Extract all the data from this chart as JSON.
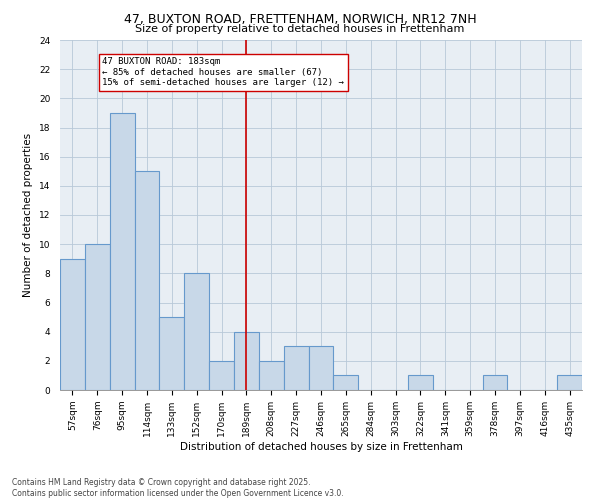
{
  "title_line1": "47, BUXTON ROAD, FRETTENHAM, NORWICH, NR12 7NH",
  "title_line2": "Size of property relative to detached houses in Frettenham",
  "xlabel": "Distribution of detached houses by size in Frettenham",
  "ylabel": "Number of detached properties",
  "categories": [
    "57sqm",
    "76sqm",
    "95sqm",
    "114sqm",
    "133sqm",
    "152sqm",
    "170sqm",
    "189sqm",
    "208sqm",
    "227sqm",
    "246sqm",
    "265sqm",
    "284sqm",
    "303sqm",
    "322sqm",
    "341sqm",
    "359sqm",
    "378sqm",
    "397sqm",
    "416sqm",
    "435sqm"
  ],
  "values": [
    9,
    10,
    19,
    15,
    5,
    8,
    2,
    4,
    2,
    3,
    3,
    1,
    0,
    0,
    1,
    0,
    0,
    1,
    0,
    0,
    1
  ],
  "bar_color": "#c8d8e8",
  "bar_edgecolor": "#6699cc",
  "bar_linewidth": 0.8,
  "vline_x_index": 7,
  "vline_color": "#cc0000",
  "annotation_text": "47 BUXTON ROAD: 183sqm\n← 85% of detached houses are smaller (67)\n15% of semi-detached houses are larger (12) →",
  "annotation_box_edgecolor": "#cc0000",
  "annotation_box_facecolor": "#ffffff",
  "ylim": [
    0,
    24
  ],
  "yticks": [
    0,
    2,
    4,
    6,
    8,
    10,
    12,
    14,
    16,
    18,
    20,
    22,
    24
  ],
  "background_color": "#e8eef4",
  "footnote": "Contains HM Land Registry data © Crown copyright and database right 2025.\nContains public sector information licensed under the Open Government Licence v3.0.",
  "title_fontsize": 9,
  "subtitle_fontsize": 8,
  "axis_label_fontsize": 7.5,
  "tick_fontsize": 6.5,
  "annotation_fontsize": 6.5,
  "footnote_fontsize": 5.5
}
